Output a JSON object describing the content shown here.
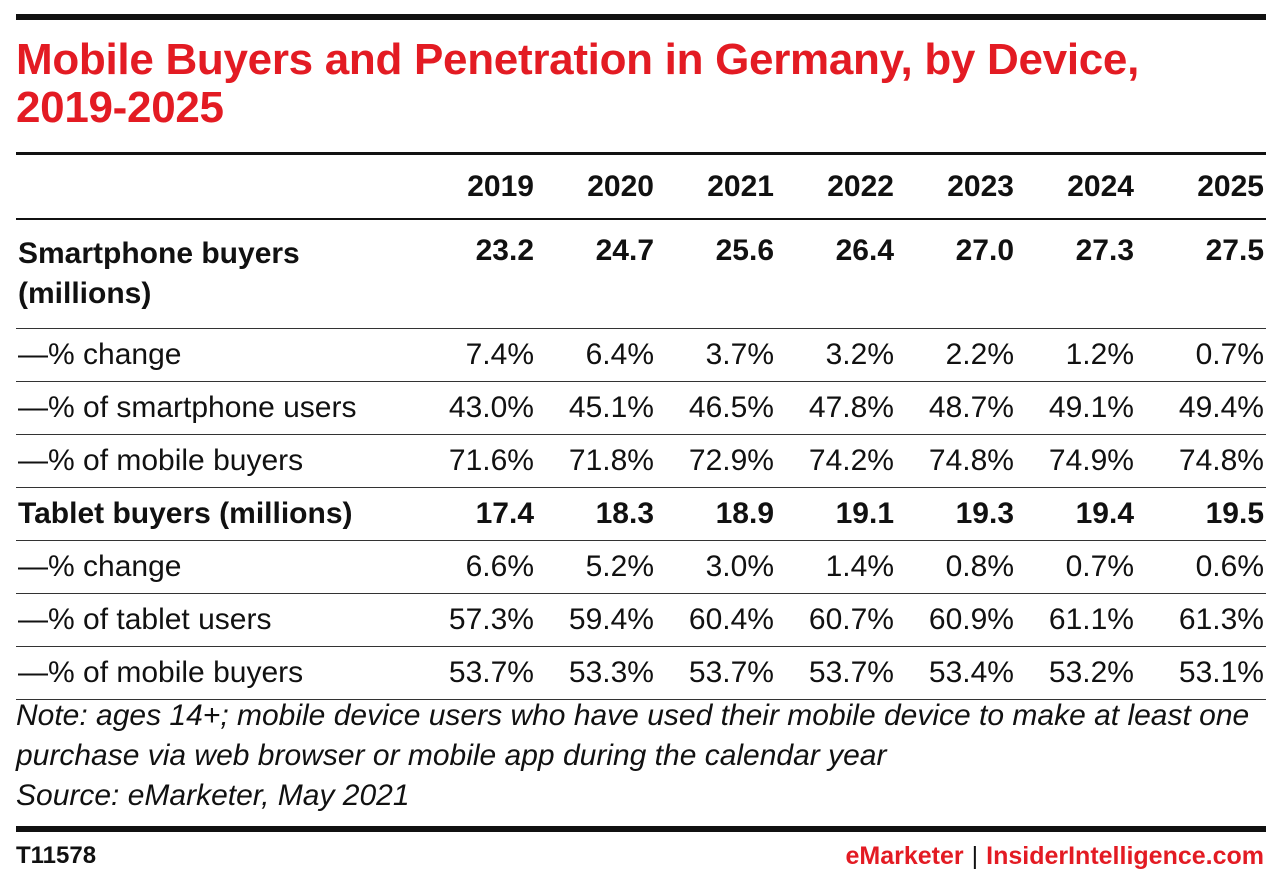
{
  "chart_data": {
    "type": "table",
    "title": "Mobile Buyers and Penetration in Germany, by Device, 2019-2025",
    "columns": [
      "2019",
      "2020",
      "2021",
      "2022",
      "2023",
      "2024",
      "2025"
    ],
    "rows": [
      {
        "label": "Smartphone buyers (millions)",
        "values": [
          "23.2",
          "24.7",
          "25.6",
          "26.4",
          "27.0",
          "27.3",
          "27.5"
        ]
      },
      {
        "label": "—% change",
        "values": [
          "7.4%",
          "6.4%",
          "3.7%",
          "3.2%",
          "2.2%",
          "1.2%",
          "0.7%"
        ]
      },
      {
        "label": "—% of smartphone users",
        "values": [
          "43.0%",
          "45.1%",
          "46.5%",
          "47.8%",
          "48.7%",
          "49.1%",
          "49.4%"
        ]
      },
      {
        "label": "—% of mobile buyers",
        "values": [
          "71.6%",
          "71.8%",
          "72.9%",
          "74.2%",
          "74.8%",
          "74.9%",
          "74.8%"
        ]
      },
      {
        "label": "Tablet buyers (millions)",
        "values": [
          "17.4",
          "18.3",
          "18.9",
          "19.1",
          "19.3",
          "19.4",
          "19.5"
        ]
      },
      {
        "label": "—% change",
        "values": [
          "6.6%",
          "5.2%",
          "3.0%",
          "1.4%",
          "0.8%",
          "0.7%",
          "0.6%"
        ]
      },
      {
        "label": "—% of tablet users",
        "values": [
          "57.3%",
          "59.4%",
          "60.4%",
          "60.7%",
          "60.9%",
          "61.1%",
          "61.3%"
        ]
      },
      {
        "label": "—% of mobile buyers",
        "values": [
          "53.7%",
          "53.3%",
          "53.7%",
          "53.7%",
          "53.4%",
          "53.2%",
          "53.1%"
        ]
      }
    ]
  },
  "note": "Note: ages 14+; mobile device users who have used their mobile device to make at least one purchase via web browser or mobile app during the calendar year",
  "source": "Source: eMarketer, May 2021",
  "footer": {
    "chart_id": "T11578",
    "brand_left": "eMarketer",
    "separator": "|",
    "brand_right": "InsiderIntelligence.com"
  },
  "colors": {
    "accent": "#e31b23",
    "text": "#111111"
  }
}
